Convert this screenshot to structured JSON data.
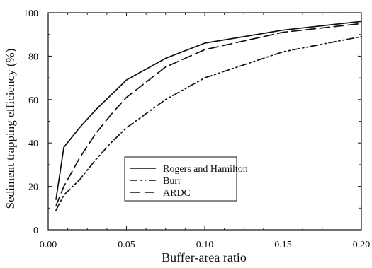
{
  "chart_data": {
    "type": "line",
    "xlabel": "Buffer-area ratio",
    "ylabel": "Sediment trapping efficiency (%)",
    "xlim": [
      0,
      0.2
    ],
    "ylim": [
      0,
      100
    ],
    "x_ticks": [
      0,
      0.05,
      0.1,
      0.15,
      0.2
    ],
    "x_tick_labels": [
      "0.00",
      "0.05",
      "0.10",
      "0.15",
      "0.20"
    ],
    "y_ticks": [
      0,
      20,
      40,
      60,
      80,
      100
    ],
    "y_tick_labels": [
      "0",
      "20",
      "40",
      "60",
      "80",
      "100"
    ],
    "grid": false,
    "legend": {
      "position": "lower-center",
      "entries": [
        "Rogers and Hamilton",
        "Burr",
        "ARDC"
      ]
    },
    "series": [
      {
        "name": "Rogers and Hamilton",
        "line_style": "solid",
        "color": "#111111",
        "points": [
          [
            0.005,
            14
          ],
          [
            0.01,
            38
          ],
          [
            0.02,
            47
          ],
          [
            0.03,
            55
          ],
          [
            0.04,
            62
          ],
          [
            0.05,
            69
          ],
          [
            0.075,
            79
          ],
          [
            0.1,
            86
          ],
          [
            0.15,
            92
          ],
          [
            0.2,
            96
          ]
        ]
      },
      {
        "name": "Burr",
        "line_style": "dash-dot",
        "color": "#111111",
        "points": [
          [
            0.005,
            9
          ],
          [
            0.01,
            16
          ],
          [
            0.02,
            23
          ],
          [
            0.03,
            32
          ],
          [
            0.04,
            40
          ],
          [
            0.05,
            47
          ],
          [
            0.075,
            60
          ],
          [
            0.1,
            70
          ],
          [
            0.15,
            82
          ],
          [
            0.2,
            89
          ]
        ]
      },
      {
        "name": "ARDC",
        "line_style": "dashed",
        "color": "#111111",
        "points": [
          [
            0.005,
            11
          ],
          [
            0.01,
            20
          ],
          [
            0.02,
            33
          ],
          [
            0.03,
            44
          ],
          [
            0.04,
            53
          ],
          [
            0.05,
            61
          ],
          [
            0.075,
            75
          ],
          [
            0.1,
            83
          ],
          [
            0.15,
            91
          ],
          [
            0.2,
            95
          ]
        ]
      }
    ]
  }
}
